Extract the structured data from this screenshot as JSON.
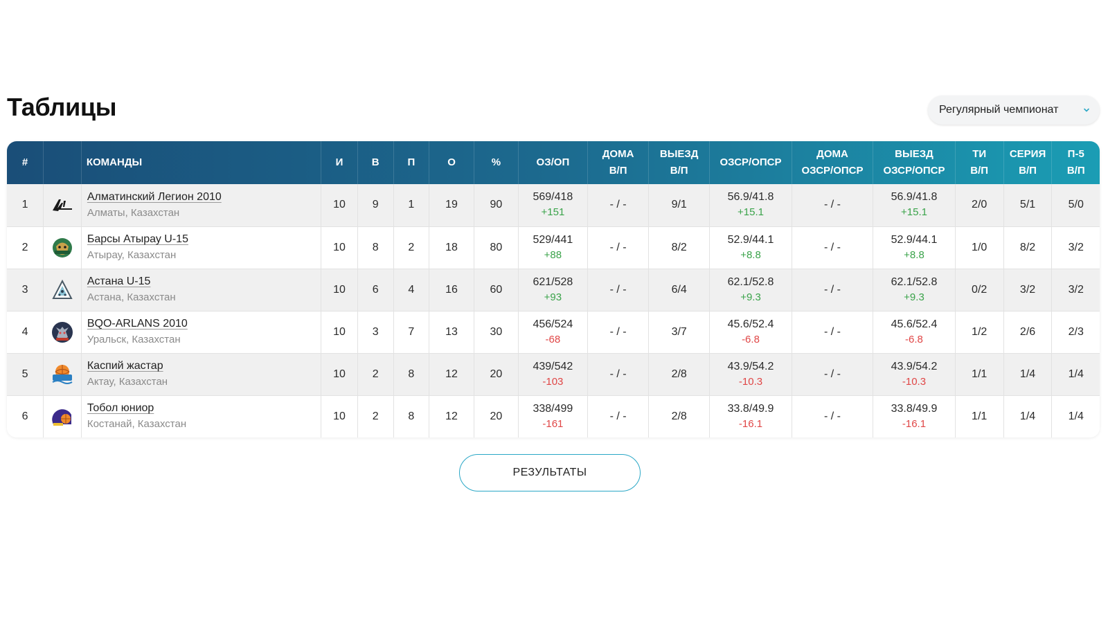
{
  "page": {
    "title": "Таблицы"
  },
  "season_select": {
    "value": "Регулярный чемпионат",
    "icon": "chevron-down-icon",
    "accent": "#2aa7c6"
  },
  "table": {
    "headers": [
      {
        "key": "num",
        "line1": "#",
        "line2": ""
      },
      {
        "key": "logo",
        "line1": "",
        "line2": ""
      },
      {
        "key": "team",
        "line1": "КОМАНДЫ",
        "line2": ""
      },
      {
        "key": "i",
        "line1": "И",
        "line2": ""
      },
      {
        "key": "v",
        "line1": "В",
        "line2": ""
      },
      {
        "key": "p",
        "line1": "П",
        "line2": ""
      },
      {
        "key": "o",
        "line1": "О",
        "line2": ""
      },
      {
        "key": "pct",
        "line1": "%",
        "line2": ""
      },
      {
        "key": "ozop",
        "line1": "ОЗ/ОП",
        "line2": ""
      },
      {
        "key": "home",
        "line1": "ДОМА",
        "line2": "В/П"
      },
      {
        "key": "away",
        "line1": "ВЫЕЗД",
        "line2": "В/П"
      },
      {
        "key": "ozsr",
        "line1": "ОЗСР/ОПСР",
        "line2": ""
      },
      {
        "key": "home_ozsr",
        "line1": "ДОМА",
        "line2": "ОЗСР/ОПСР"
      },
      {
        "key": "away_ozsr",
        "line1": "ВЫЕЗД",
        "line2": "ОЗСР/ОПСР"
      },
      {
        "key": "ti",
        "line1": "ТИ",
        "line2": "В/П"
      },
      {
        "key": "series",
        "line1": "СЕРИЯ",
        "line2": "В/П"
      },
      {
        "key": "p5",
        "line1": "П-5",
        "line2": "В/П"
      }
    ],
    "rows": [
      {
        "num": "1",
        "logo": "almaty-legion-logo",
        "team": "Алматинский Легион 2010",
        "city": "Алматы, Казахстан",
        "i": "10",
        "v": "9",
        "p": "1",
        "o": "19",
        "pct": "90",
        "oz": "569/418",
        "oz_diff": "+151",
        "home": "- / -",
        "away": "9/1",
        "ozsr": "56.9/41.8",
        "ozsr_diff": "+15.1",
        "home_ozsr": "- / -",
        "away_ozsr": "56.9/41.8",
        "away_ozsr_diff": "+15.1",
        "ti": "2/0",
        "series": "5/1",
        "p5": "5/0"
      },
      {
        "num": "2",
        "logo": "barsy-atyrau-logo",
        "team": "Барсы Атырау U-15",
        "city": "Атырау, Казахстан",
        "i": "10",
        "v": "8",
        "p": "2",
        "o": "18",
        "pct": "80",
        "oz": "529/441",
        "oz_diff": "+88",
        "home": "- / -",
        "away": "8/2",
        "ozsr": "52.9/44.1",
        "ozsr_diff": "+8.8",
        "home_ozsr": "- / -",
        "away_ozsr": "52.9/44.1",
        "away_ozsr_diff": "+8.8",
        "ti": "1/0",
        "series": "8/2",
        "p5": "3/2"
      },
      {
        "num": "3",
        "logo": "astana-logo",
        "team": "Астана U-15",
        "city": "Астана, Казахстан",
        "i": "10",
        "v": "6",
        "p": "4",
        "o": "16",
        "pct": "60",
        "oz": "621/528",
        "oz_diff": "+93",
        "home": "- / -",
        "away": "6/4",
        "ozsr": "62.1/52.8",
        "ozsr_diff": "+9.3",
        "home_ozsr": "- / -",
        "away_ozsr": "62.1/52.8",
        "away_ozsr_diff": "+9.3",
        "ti": "0/2",
        "series": "3/2",
        "p5": "3/2"
      },
      {
        "num": "4",
        "logo": "bqo-arlans-logo",
        "team": "BQO-ARLANS 2010",
        "city": "Уральск, Казахстан",
        "i": "10",
        "v": "3",
        "p": "7",
        "o": "13",
        "pct": "30",
        "oz": "456/524",
        "oz_diff": "-68",
        "home": "- / -",
        "away": "3/7",
        "ozsr": "45.6/52.4",
        "ozsr_diff": "-6.8",
        "home_ozsr": "- / -",
        "away_ozsr": "45.6/52.4",
        "away_ozsr_diff": "-6.8",
        "ti": "1/2",
        "series": "2/6",
        "p5": "2/3"
      },
      {
        "num": "5",
        "logo": "kaspiy-zhastar-logo",
        "team": "Каспий жастар",
        "city": "Актау, Казахстан",
        "i": "10",
        "v": "2",
        "p": "8",
        "o": "12",
        "pct": "20",
        "oz": "439/542",
        "oz_diff": "-103",
        "home": "- / -",
        "away": "2/8",
        "ozsr": "43.9/54.2",
        "ozsr_diff": "-10.3",
        "home_ozsr": "- / -",
        "away_ozsr": "43.9/54.2",
        "away_ozsr_diff": "-10.3",
        "ti": "1/1",
        "series": "1/4",
        "p5": "1/4"
      },
      {
        "num": "6",
        "logo": "tobol-junior-logo",
        "team": "Тобол юниор",
        "city": "Костанай, Казахстан",
        "i": "10",
        "v": "2",
        "p": "8",
        "o": "12",
        "pct": "20",
        "oz": "338/499",
        "oz_diff": "-161",
        "home": "- / -",
        "away": "2/8",
        "ozsr": "33.8/49.9",
        "ozsr_diff": "-16.1",
        "home_ozsr": "- / -",
        "away_ozsr": "33.8/49.9",
        "away_ozsr_diff": "-16.1",
        "ti": "1/1",
        "series": "1/4",
        "p5": "1/4"
      }
    ]
  },
  "results_button": {
    "label": "РЕЗУЛЬТАТЫ"
  },
  "colors": {
    "header_from": "#1a4e78",
    "header_to": "#1b9db4",
    "positive": "#3aa34a",
    "negative": "#e04646",
    "accent": "#2aa7c6"
  }
}
